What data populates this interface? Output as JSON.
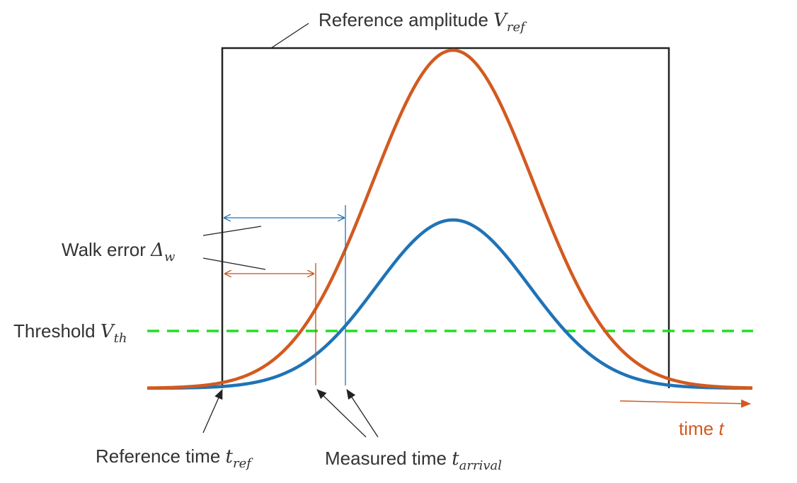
{
  "labels": {
    "reference_amplitude": {
      "text": "Reference amplitude ",
      "symbol": "V",
      "sub": "ref"
    },
    "walk_error": {
      "text": "Walk error ",
      "symbol": "Δ",
      "sub": "w"
    },
    "threshold": {
      "text": "Threshold ",
      "symbol": "V",
      "sub": "th"
    },
    "reference_time": {
      "text": "Reference time ",
      "symbol": "t",
      "sub": "ref"
    },
    "measured_time": {
      "text": "Measured time ",
      "symbol": "t",
      "sub": "arrival"
    },
    "time_axis": {
      "text": "time ",
      "symbol": "t"
    }
  },
  "colors": {
    "large_pulse": "#d35a1f",
    "small_pulse": "#1f73b7",
    "threshold": "#22dd22",
    "reference_box": "#222222",
    "annotation": "#222222",
    "time_label": "#d35a1f"
  },
  "icons": {
    "pointer_arrow": "arrowhead"
  }
}
